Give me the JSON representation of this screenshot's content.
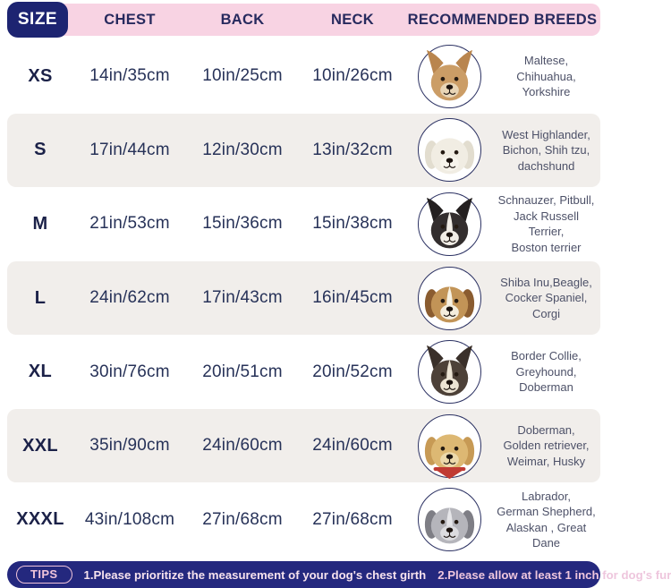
{
  "header": {
    "size_label": "SIZE",
    "columns": [
      "CHEST",
      "BACK",
      "NECK",
      "RECOMMENDED BREEDS"
    ]
  },
  "table": {
    "rows": [
      {
        "size": "XS",
        "chest": "14in/35cm",
        "back": "10in/25cm",
        "neck": "10in/26cm",
        "breeds": "Maltese,\nChihuahua,\nYorkshire",
        "dog": {
          "icon": "chihuahua-icon",
          "ears": "up",
          "fur": "#cb9d66",
          "ear": "#b9854e",
          "muzzle": "#e8d5b6",
          "blaze": "",
          "bandana": ""
        }
      },
      {
        "size": "S",
        "chest": "17in/44cm",
        "back": "12in/30cm",
        "neck": "13in/32cm",
        "breeds": "West Highlander,\nBichon, Shih tzu,\ndachshund",
        "dog": {
          "icon": "bichon-icon",
          "ears": "down",
          "fur": "#f1ede3",
          "ear": "#e2ddcf",
          "muzzle": "#f7f4ec",
          "blaze": "",
          "bandana": ""
        }
      },
      {
        "size": "M",
        "chest": "21in/53cm",
        "back": "15in/36cm",
        "neck": "15in/38cm",
        "breeds": "Schnauzer, Pitbull,\nJack Russell Terrier,\nBoston terrier",
        "dog": {
          "icon": "boston-terrier-icon",
          "ears": "up",
          "fur": "#332e2e",
          "ear": "#242020",
          "muzzle": "#f1ede6",
          "blaze": "#f1ede6",
          "bandana": ""
        }
      },
      {
        "size": "L",
        "chest": "24in/62cm",
        "back": "17in/43cm",
        "neck": "16in/45cm",
        "breeds": "Shiba Inu,Beagle,\nCocker Spaniel,\nCorgi",
        "dog": {
          "icon": "beagle-icon",
          "ears": "down",
          "fur": "#c29457",
          "ear": "#8a5c30",
          "muzzle": "#f4eddc",
          "blaze": "#f7f1e2",
          "bandana": ""
        }
      },
      {
        "size": "XL",
        "chest": "30in/76cm",
        "back": "20in/51cm",
        "neck": "20in/52cm",
        "breeds": "Border Collie,\nGreyhound,\nDoberman",
        "dog": {
          "icon": "border-collie-icon",
          "ears": "up",
          "fur": "#4d4138",
          "ear": "#3a302a",
          "muzzle": "#ece4d4",
          "blaze": "#ece4d4",
          "bandana": ""
        }
      },
      {
        "size": "XXL",
        "chest": "35in/90cm",
        "back": "24in/60cm",
        "neck": "24in/60cm",
        "breeds": "Doberman,\nGolden retriever,\nWeimar, Husky",
        "dog": {
          "icon": "golden-retriever-icon",
          "ears": "down",
          "fur": "#ddb873",
          "ear": "#c79a55",
          "muzzle": "#ecd9ab",
          "blaze": "",
          "bandana": "#c03a33"
        }
      },
      {
        "size": "XXXL",
        "chest": "43in/108cm",
        "back": "27in/68cm",
        "neck": "27in/68cm",
        "breeds": "Labrador,\nGerman Shepherd,\nAlaskan , Great Dane",
        "dog": {
          "icon": "great-dane-icon",
          "ears": "down",
          "fur": "#b5b5bb",
          "ear": "#7e7e85",
          "muzzle": "#dcdcdf",
          "blaze": "#e6e6e9",
          "bandana": ""
        }
      }
    ]
  },
  "tips": {
    "label": "TIPS",
    "tip1": "1.Please prioritize the measurement of your dog's chest girth",
    "tip2": "2.Please allow at least 1 inch for dog's fur"
  },
  "colors": {
    "header_pink": "#f8d3e3",
    "navy": "#1d2471",
    "row_alt": "#f1eeeb",
    "tips_bar": "#24287e",
    "tip_text": "#f2d3e4",
    "measure_text": "#273258",
    "breeds_text": "#4d5168",
    "circle_border": "#2c3263"
  }
}
